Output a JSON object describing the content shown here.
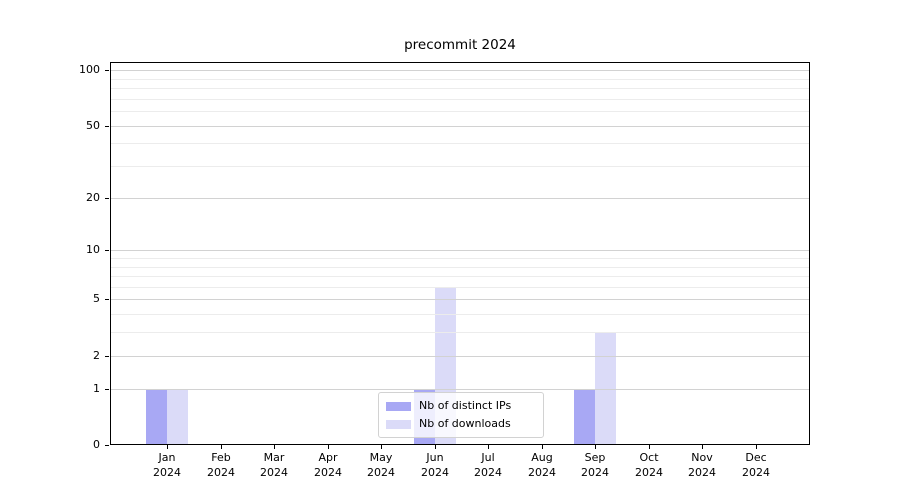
{
  "chart_data": {
    "type": "bar",
    "title": "precommit 2024",
    "categories": [
      {
        "month": "Jan",
        "year": "2024"
      },
      {
        "month": "Feb",
        "year": "2024"
      },
      {
        "month": "Mar",
        "year": "2024"
      },
      {
        "month": "Apr",
        "year": "2024"
      },
      {
        "month": "May",
        "year": "2024"
      },
      {
        "month": "Jun",
        "year": "2024"
      },
      {
        "month": "Jul",
        "year": "2024"
      },
      {
        "month": "Aug",
        "year": "2024"
      },
      {
        "month": "Sep",
        "year": "2024"
      },
      {
        "month": "Oct",
        "year": "2024"
      },
      {
        "month": "Nov",
        "year": "2024"
      },
      {
        "month": "Dec",
        "year": "2024"
      }
    ],
    "series": [
      {
        "name": "Nb of distinct IPs",
        "key": "distinct-ips",
        "color": "#a8a8f4",
        "values": [
          1,
          0,
          0,
          0,
          0,
          1,
          0,
          0,
          1,
          0,
          0,
          0
        ]
      },
      {
        "name": "Nb of downloads",
        "key": "downloads",
        "color": "#dbdbf8",
        "values": [
          1,
          0,
          0,
          0,
          0,
          6,
          0,
          0,
          3,
          0,
          0,
          0
        ]
      }
    ],
    "y_axis": {
      "scale": "log1p",
      "major_ticks": [
        0,
        1,
        2,
        5,
        10,
        20,
        50,
        100
      ],
      "minor_ticks": [
        3,
        4,
        6,
        7,
        8,
        9,
        30,
        40,
        60,
        70,
        80,
        90
      ],
      "max_value": 110
    },
    "xlabel": "",
    "ylabel": "",
    "legend_position": "lower center",
    "grid": {
      "on": true,
      "major_color": "#d2d2d2",
      "minor_color": "#ececec"
    },
    "axis_color": "#000000"
  }
}
